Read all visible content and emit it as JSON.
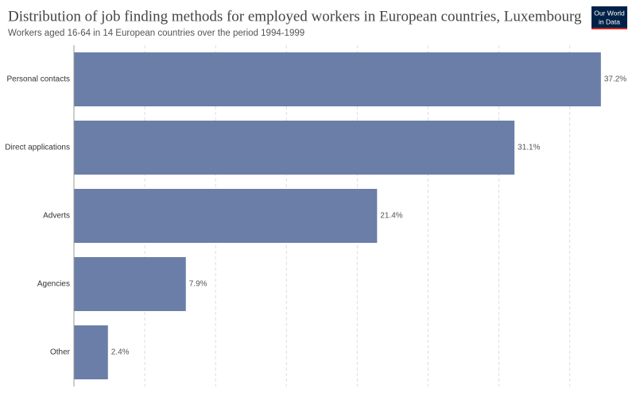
{
  "chart_data": {
    "type": "hbar",
    "title": "Distribution of job finding methods for employed workers in European countries, Luxembourg",
    "subtitle": "Workers aged 16-64 in 14 European countries over the period 1994-1999",
    "logo": [
      "Our World",
      "in Data"
    ],
    "categories": [
      "Personal contacts",
      "Direct applications",
      "Adverts",
      "Agencies",
      "Other"
    ],
    "values": [
      37.2,
      31.1,
      21.4,
      7.9,
      2.4
    ],
    "value_labels": [
      "37.2%",
      "31.1%",
      "21.4%",
      "7.9%",
      "2.4%"
    ],
    "color": "#6a7ea8",
    "xlim": [
      0,
      38.5
    ],
    "xticks": [
      0,
      5,
      10,
      15,
      20,
      25,
      30,
      35
    ],
    "grid": true
  }
}
